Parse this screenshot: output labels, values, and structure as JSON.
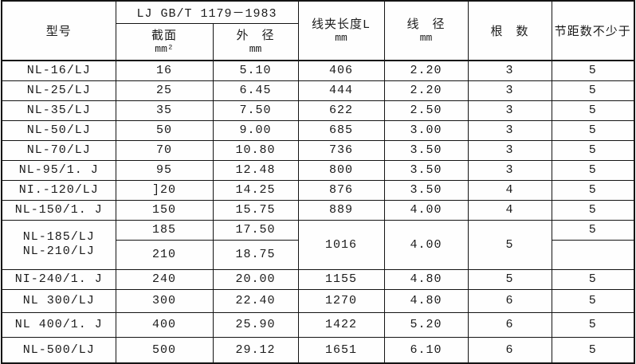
{
  "table": {
    "header": {
      "model": "型号",
      "standard": "LJ GB/T 1179－1983",
      "section_label": "截面",
      "section_unit": "mm²",
      "outer_dia_label": "外　径",
      "outer_dia_unit": "mm",
      "clamp_len_label": "线夹长度L",
      "clamp_len_unit": "mm",
      "wire_dia_label": "线　径",
      "wire_dia_unit": "mm",
      "strands_label": "根　数",
      "pitch_label": "节距数不少于"
    },
    "rows": [
      {
        "cells": [
          {
            "t": "NL-16/LJ"
          },
          {
            "t": "16"
          },
          {
            "t": "5.10"
          },
          {
            "t": "406"
          },
          {
            "t": "2.20"
          },
          {
            "t": "3"
          },
          {
            "t": "5"
          }
        ]
      },
      {
        "cells": [
          {
            "t": "NL-25/LJ"
          },
          {
            "t": "25"
          },
          {
            "t": "6.45"
          },
          {
            "t": "444"
          },
          {
            "t": "2.20"
          },
          {
            "t": "3"
          },
          {
            "t": "5"
          }
        ]
      },
      {
        "cells": [
          {
            "t": "NL-35/LJ"
          },
          {
            "t": "35"
          },
          {
            "t": "7.50"
          },
          {
            "t": "622"
          },
          {
            "t": "2.50"
          },
          {
            "t": "3"
          },
          {
            "t": "5"
          }
        ]
      },
      {
        "cells": [
          {
            "t": "NL-50/LJ"
          },
          {
            "t": "50"
          },
          {
            "t": "9.00"
          },
          {
            "t": "685"
          },
          {
            "t": "3.00"
          },
          {
            "t": "3"
          },
          {
            "t": "5"
          }
        ]
      },
      {
        "cells": [
          {
            "t": "NL-70/LJ"
          },
          {
            "t": "70"
          },
          {
            "t": "10.80"
          },
          {
            "t": "736"
          },
          {
            "t": "3.50"
          },
          {
            "t": "3"
          },
          {
            "t": "5"
          }
        ]
      },
      {
        "cells": [
          {
            "t": "NL-95/1. J"
          },
          {
            "t": "95"
          },
          {
            "t": "12.48"
          },
          {
            "t": "800"
          },
          {
            "t": "3.50"
          },
          {
            "t": "3"
          },
          {
            "t": "5"
          }
        ]
      },
      {
        "cells": [
          {
            "t": "NI.-120/LJ"
          },
          {
            "t": "]20"
          },
          {
            "t": "14.25"
          },
          {
            "t": "876"
          },
          {
            "t": "3.50"
          },
          {
            "t": "4"
          },
          {
            "t": "5"
          }
        ]
      },
      {
        "cells": [
          {
            "t": "NL-150/1. J"
          },
          {
            "t": "150"
          },
          {
            "t": "15.75"
          },
          {
            "t": "889"
          },
          {
            "t": "4.00"
          },
          {
            "t": "4"
          },
          {
            "t": "5"
          }
        ]
      },
      {
        "cells": [
          {
            "lines": [
              "NL-185/LJ",
              "NL-210/LJ"
            ],
            "rowspan": 2
          },
          {
            "t": "185"
          },
          {
            "t": "17.50"
          },
          {
            "t": "1016",
            "rowspan": 2
          },
          {
            "t": "4.00",
            "rowspan": 2
          },
          {
            "t": "5",
            "rowspan": 2
          },
          {
            "t": "5"
          }
        ]
      },
      {
        "cells": [
          {
            "t": "210"
          },
          {
            "t": "18.75"
          },
          {
            "t": ""
          }
        ]
      },
      {
        "cells": [
          {
            "t": "NI-240/1. J"
          },
          {
            "t": "240"
          },
          {
            "t": "20.00"
          },
          {
            "t": "1155"
          },
          {
            "t": "4.80"
          },
          {
            "t": "5"
          },
          {
            "t": "5"
          }
        ]
      },
      {
        "cells": [
          {
            "t": "NL 300/LJ"
          },
          {
            "t": "300"
          },
          {
            "t": "22.40"
          },
          {
            "t": "1270"
          },
          {
            "t": "4.80"
          },
          {
            "t": "6"
          },
          {
            "t": "5"
          }
        ]
      },
      {
        "cells": [
          {
            "t": "NL 400/1. J"
          },
          {
            "t": "400"
          },
          {
            "t": "25.90"
          },
          {
            "t": "1422"
          },
          {
            "t": "5.20"
          },
          {
            "t": "6"
          },
          {
            "t": "5"
          }
        ]
      },
      {
        "cells": [
          {
            "t": "NL-500/LJ"
          },
          {
            "t": "500"
          },
          {
            "t": "29.12"
          },
          {
            "t": "1651"
          },
          {
            "t": "6.10"
          },
          {
            "t": "6"
          },
          {
            "t": "5"
          }
        ]
      }
    ]
  }
}
